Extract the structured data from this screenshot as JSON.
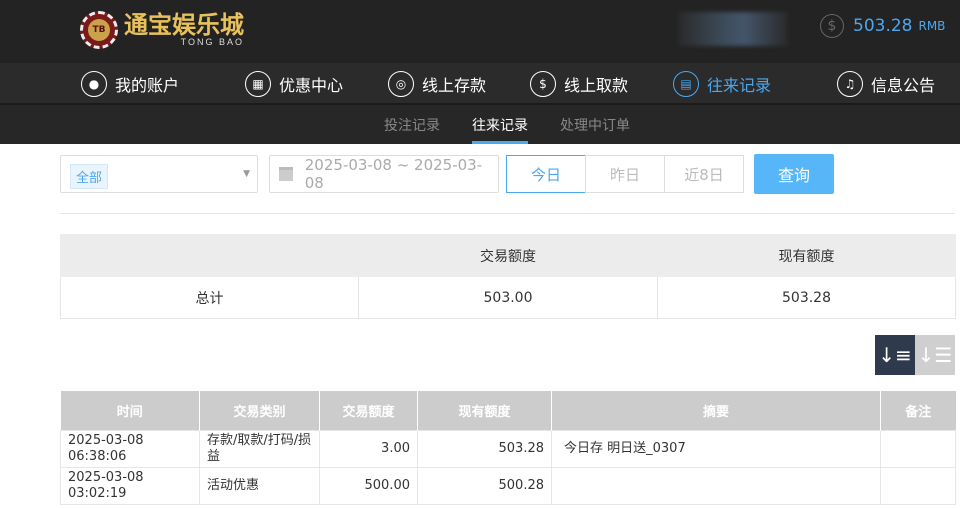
{
  "header": {
    "brand": "通宝娱乐城",
    "brand_sub": "TONG BAO",
    "logo_chip": "TB",
    "balance": "503.28",
    "currency": "RMB"
  },
  "nav": [
    {
      "label": "我的账户",
      "icon": "user-icon"
    },
    {
      "label": "优惠中心",
      "icon": "gift-icon"
    },
    {
      "label": "线上存款",
      "icon": "deposit-icon"
    },
    {
      "label": "线上取款",
      "icon": "withdraw-icon"
    },
    {
      "label": "往来记录",
      "icon": "record-icon",
      "active": true
    },
    {
      "label": "信息公告",
      "icon": "bell-icon"
    }
  ],
  "subnav": [
    {
      "label": "投注记录"
    },
    {
      "label": "往来记录",
      "active": true
    },
    {
      "label": "处理中订单"
    }
  ],
  "filter": {
    "type": "全部",
    "date_range": "2025-03-08 ~ 2025-03-08",
    "quick": [
      "今日",
      "昨日",
      "近8日"
    ],
    "query": "查询"
  },
  "summary": {
    "headers": [
      "",
      "交易额度",
      "现有额度"
    ],
    "row": [
      "总计",
      "503.00",
      "503.28"
    ]
  },
  "table": {
    "headers": [
      "时间",
      "交易类别",
      "交易额度",
      "现有额度",
      "摘要",
      "备注"
    ],
    "rows": [
      [
        "2025-03-08 06:38:06",
        "存款/取款/打码/损益",
        "3.00",
        "503.28",
        "今日存 明日送_0307",
        ""
      ],
      [
        "2025-03-08 03:02:19",
        "活动优惠",
        "500.00",
        "500.28",
        "",
        ""
      ]
    ]
  },
  "colors": {
    "accent": "#4aa8f0",
    "header_bg": "#232323",
    "query_btn": "#57b6f8"
  }
}
